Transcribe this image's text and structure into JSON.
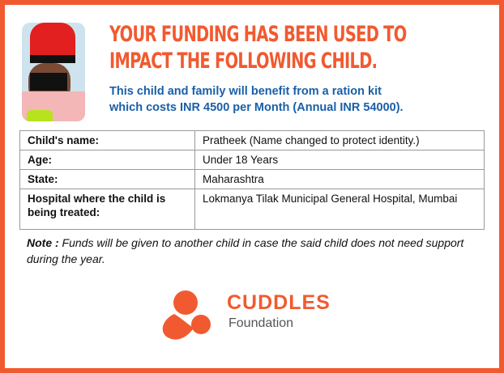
{
  "heading": {
    "line1": "YOUR FUNDING HAS BEEN USED TO",
    "line2": "IMPACT THE FOLLOWING CHILD."
  },
  "subtext": {
    "line1": "This child and family will benefit from a ration kit",
    "line2": "which costs INR 4500 per Month (Annual INR 54000)."
  },
  "details": [
    {
      "label": "Child's name:",
      "value": "Pratheek (Name changed to protect identity.)"
    },
    {
      "label": "Age:",
      "value": "Under 18 Years"
    },
    {
      "label": "State:",
      "value": "Maharashtra"
    },
    {
      "label": "Hospital where the child is being treated:",
      "value": "Lokmanya Tilak Municipal General Hospital, Mumbai"
    }
  ],
  "note": {
    "label": "Note :",
    "text": " Funds will be given to another child in case the said child does not need support during the year."
  },
  "logo": {
    "name": "CUDDLES",
    "sub": "Foundation"
  },
  "colors": {
    "accent": "#f15a30",
    "blue": "#1a5fa8"
  }
}
